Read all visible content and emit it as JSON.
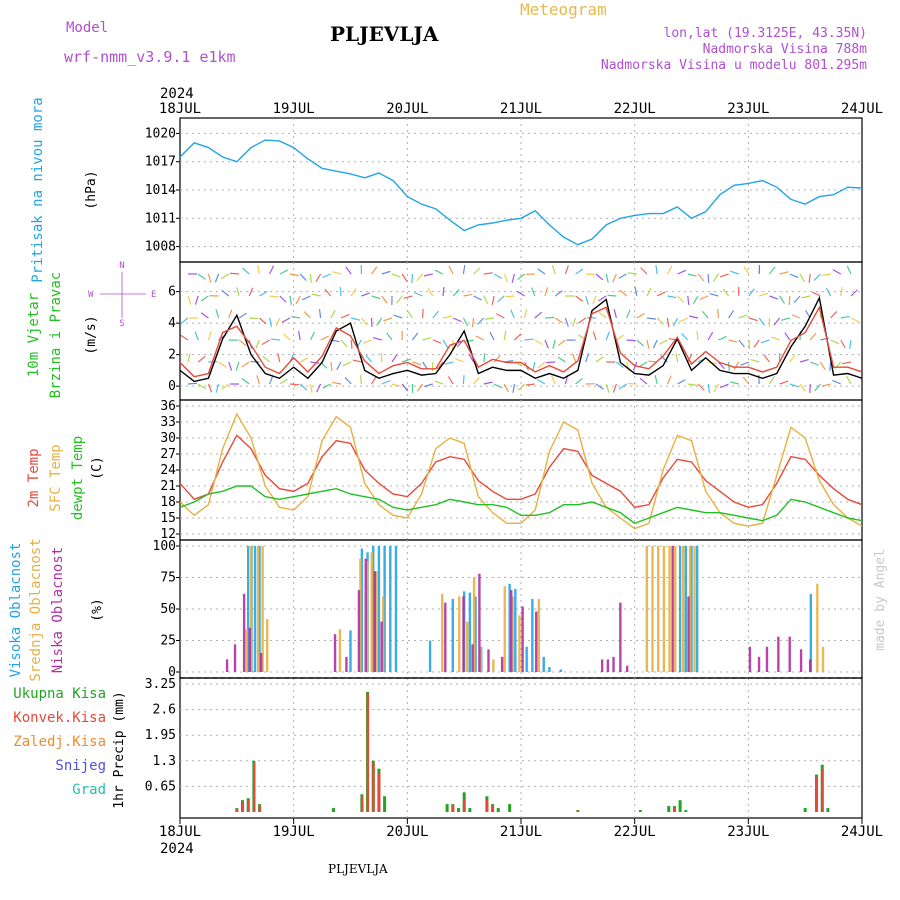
{
  "header": {
    "model_label": "Model",
    "model_name": "wrf-nmm_v3.9.1 e1km",
    "station": "PLJEVLJA",
    "title": "Meteogram",
    "location": "lon,lat (19.3125E, 43.35N)",
    "altitude": "Nadmorska Visina 788m",
    "model_altitude": "Nadmorska Visina u modelu 801.295m",
    "footer": "PLJEVLJA",
    "watermark": "made by Angel"
  },
  "time_axis": {
    "year": "2024",
    "labels": [
      "18JUL",
      "19JUL",
      "20JUL",
      "21JUL",
      "22JUL",
      "23JUL",
      "24JUL"
    ]
  },
  "chart_data": [
    {
      "type": "line",
      "title": "",
      "ylabel": "Pritisak na nivou mora",
      "unit": "(hPa)",
      "ylim": [
        1007,
        1021
      ],
      "yticks": [
        1008,
        1011,
        1014,
        1017,
        1020
      ],
      "color": "#22a4e6",
      "x": [
        0,
        0.125,
        0.25,
        0.375,
        0.5,
        0.625,
        0.75,
        0.875,
        1,
        1.125,
        1.25,
        1.375,
        1.5,
        1.625,
        1.75,
        1.875,
        2,
        2.125,
        2.25,
        2.375,
        2.5,
        2.625,
        2.75,
        2.875,
        3,
        3.125,
        3.25,
        3.375,
        3.5,
        3.625,
        3.75,
        3.875,
        4,
        4.125,
        4.25,
        4.375,
        4.5,
        4.625,
        4.75,
        4.875,
        5,
        5.125,
        5.25,
        5.375,
        5.5,
        5.625,
        5.75,
        5.875,
        6
      ],
      "values": [
        1017.5,
        1019.0,
        1018.5,
        1017.5,
        1017.0,
        1018.5,
        1019.3,
        1019.2,
        1018.5,
        1017.3,
        1016.3,
        1016.0,
        1015.7,
        1015.3,
        1015.8,
        1015.0,
        1013.3,
        1012.5,
        1012.0,
        1010.8,
        1009.7,
        1010.3,
        1010.5,
        1010.8,
        1011.0,
        1011.8,
        1010.3,
        1009.0,
        1008.2,
        1008.8,
        1010.3,
        1011.0,
        1011.3,
        1011.5,
        1011.5,
        1012.2,
        1011.0,
        1011.7,
        1013.5,
        1014.5,
        1014.7,
        1015.0,
        1014.3,
        1013.0,
        1012.5,
        1013.3,
        1013.5,
        1014.3,
        1014.2
      ],
      "line_style": "solid"
    },
    {
      "type": "line",
      "title": "",
      "ylabel": "10m Vjetar Brzina i Pravac",
      "unit": "(m/s)",
      "ylim": [
        -0.5,
        7.5
      ],
      "yticks": [
        0,
        2,
        4,
        6
      ],
      "direction_legend": [
        "N",
        "W",
        "E",
        "S"
      ],
      "series": [
        {
          "color": "#000000",
          "x": [
            0,
            0.125,
            0.25,
            0.375,
            0.5,
            0.625,
            0.75,
            0.875,
            1,
            1.125,
            1.25,
            1.375,
            1.5,
            1.625,
            1.75,
            1.875,
            2,
            2.125,
            2.25,
            2.375,
            2.5,
            2.625,
            2.75,
            2.875,
            3,
            3.125,
            3.25,
            3.375,
            3.5,
            3.625,
            3.75,
            3.875,
            4,
            4.125,
            4.25,
            4.375,
            4.5,
            4.625,
            4.75,
            4.875,
            5,
            5.125,
            5.25,
            5.375,
            5.5,
            5.625,
            5.75,
            5.875,
            6
          ],
          "values": [
            1.0,
            0.3,
            0.5,
            3.0,
            4.5,
            2.0,
            0.8,
            0.5,
            1.2,
            0.5,
            1.5,
            3.5,
            4.0,
            1.0,
            0.5,
            0.8,
            1.0,
            0.7,
            0.8,
            2.0,
            3.5,
            0.8,
            1.2,
            1.0,
            1.0,
            0.5,
            0.8,
            0.5,
            1.0,
            4.8,
            5.5,
            1.5,
            0.8,
            0.7,
            1.3,
            3.0,
            1.0,
            1.8,
            1.0,
            0.8,
            0.8,
            0.5,
            0.8,
            2.5,
            3.8,
            5.6,
            0.7,
            0.8,
            0.5
          ]
        },
        {
          "color": "#e84a3a",
          "x": [
            0,
            0.125,
            0.25,
            0.375,
            0.5,
            0.625,
            0.75,
            0.875,
            1,
            1.125,
            1.25,
            1.375,
            1.5,
            1.625,
            1.75,
            1.875,
            2,
            2.125,
            2.25,
            2.375,
            2.5,
            2.625,
            2.75,
            2.875,
            3,
            3.125,
            3.25,
            3.375,
            3.5,
            3.625,
            3.75,
            3.875,
            4,
            4.125,
            4.25,
            4.375,
            4.5,
            4.625,
            4.75,
            4.875,
            5,
            5.125,
            5.25,
            5.375,
            5.5,
            5.625,
            5.75,
            5.875,
            6
          ],
          "values": [
            1.5,
            0.6,
            0.8,
            3.4,
            3.8,
            2.6,
            1.2,
            0.8,
            1.8,
            0.9,
            1.9,
            3.7,
            3.2,
            1.6,
            0.8,
            1.3,
            1.5,
            1.1,
            1.1,
            2.6,
            2.9,
            1.2,
            1.7,
            1.5,
            1.5,
            0.9,
            1.3,
            0.9,
            1.6,
            4.6,
            5.0,
            2.1,
            1.3,
            1.1,
            1.9,
            3.1,
            1.4,
            2.2,
            1.5,
            1.2,
            1.2,
            0.9,
            1.2,
            2.9,
            3.4,
            5.0,
            1.2,
            1.2,
            0.9
          ]
        }
      ]
    },
    {
      "type": "line",
      "title": "",
      "ylabel": "2m Temp / SFC Temp / dewpt Temp",
      "unit": "(C)",
      "ylim": [
        12,
        36
      ],
      "yticks": [
        12,
        15,
        18,
        21,
        24,
        27,
        30,
        33,
        36
      ],
      "series": [
        {
          "name": "2m Temp",
          "color": "#e8483a",
          "x": [
            0,
            0.125,
            0.25,
            0.375,
            0.5,
            0.625,
            0.75,
            0.875,
            1,
            1.125,
            1.25,
            1.375,
            1.5,
            1.625,
            1.75,
            1.875,
            2,
            2.125,
            2.25,
            2.375,
            2.5,
            2.625,
            2.75,
            2.875,
            3,
            3.125,
            3.25,
            3.375,
            3.5,
            3.625,
            3.75,
            3.875,
            4,
            4.125,
            4.25,
            4.375,
            4.5,
            4.625,
            4.75,
            4.875,
            5,
            5.125,
            5.25,
            5.375,
            5.5,
            5.625,
            5.75,
            5.875,
            6
          ],
          "values": [
            21.5,
            18.5,
            19.5,
            25.5,
            30.5,
            28.0,
            23.0,
            20.5,
            20.0,
            21.5,
            26.5,
            29.5,
            29.0,
            24.0,
            21.5,
            19.5,
            19.0,
            21.5,
            25.5,
            26.5,
            26.0,
            22.0,
            20.0,
            18.5,
            18.5,
            19.5,
            24.5,
            28.0,
            27.5,
            23.0,
            21.5,
            20.0,
            17.0,
            17.5,
            22.5,
            26.0,
            25.5,
            22.0,
            20.0,
            18.0,
            17.0,
            17.5,
            21.5,
            26.5,
            26.0,
            23.0,
            20.5,
            18.5,
            17.5
          ]
        },
        {
          "name": "SFC Temp",
          "color": "#e8b040",
          "x": [
            0,
            0.125,
            0.25,
            0.375,
            0.5,
            0.625,
            0.75,
            0.875,
            1,
            1.125,
            1.25,
            1.375,
            1.5,
            1.625,
            1.75,
            1.875,
            2,
            2.125,
            2.25,
            2.375,
            2.5,
            2.625,
            2.75,
            2.875,
            3,
            3.125,
            3.25,
            3.375,
            3.5,
            3.625,
            3.75,
            3.875,
            4,
            4.125,
            4.25,
            4.375,
            4.5,
            4.625,
            4.75,
            4.875,
            5,
            5.125,
            5.25,
            5.375,
            5.5,
            5.625,
            5.75,
            5.875,
            6
          ],
          "values": [
            18.0,
            15.5,
            17.5,
            28.0,
            34.5,
            30.0,
            21.0,
            17.0,
            16.5,
            19.0,
            29.5,
            34.0,
            32.0,
            21.5,
            17.5,
            15.5,
            15.0,
            19.5,
            28.0,
            30.0,
            29.0,
            19.0,
            16.0,
            14.0,
            14.0,
            16.5,
            27.5,
            33.0,
            31.5,
            21.5,
            17.0,
            15.0,
            13.0,
            14.0,
            24.0,
            30.5,
            29.5,
            20.0,
            16.0,
            14.0,
            13.5,
            14.0,
            23.0,
            32.0,
            30.0,
            22.0,
            17.5,
            15.0,
            13.5
          ]
        },
        {
          "name": "dewpt Temp",
          "color": "#22c022",
          "x": [
            0,
            0.125,
            0.25,
            0.375,
            0.5,
            0.625,
            0.75,
            0.875,
            1,
            1.125,
            1.25,
            1.375,
            1.5,
            1.625,
            1.75,
            1.875,
            2,
            2.125,
            2.25,
            2.375,
            2.5,
            2.625,
            2.75,
            2.875,
            3,
            3.125,
            3.25,
            3.375,
            3.5,
            3.625,
            3.75,
            3.875,
            4,
            4.125,
            4.25,
            4.375,
            4.5,
            4.625,
            4.75,
            4.875,
            5,
            5.125,
            5.25,
            5.375,
            5.5,
            5.625,
            5.75,
            5.875,
            6
          ],
          "values": [
            17.0,
            18.0,
            19.5,
            20.0,
            21.0,
            21.0,
            19.0,
            18.5,
            19.0,
            19.5,
            20.0,
            20.5,
            19.5,
            19.0,
            18.5,
            17.0,
            16.5,
            17.0,
            17.5,
            18.5,
            18.0,
            17.5,
            17.5,
            17.0,
            15.5,
            15.5,
            16.0,
            17.5,
            17.5,
            18.0,
            17.0,
            16.0,
            14.0,
            15.0,
            16.0,
            17.0,
            16.5,
            16.0,
            16.0,
            15.5,
            15.0,
            14.5,
            15.5,
            18.5,
            18.0,
            17.0,
            16.0,
            15.0,
            14.5
          ]
        }
      ]
    },
    {
      "type": "bar",
      "title": "",
      "ylabel": "Visoka Oblacnost / Srednja Oblacnost / Niska Oblacnost",
      "unit": "(%)",
      "ylim": [
        0,
        100
      ],
      "yticks": [
        0,
        25,
        50,
        75,
        100
      ],
      "series": [
        {
          "name": "Visoka Oblacnost",
          "color": "#22a4e6",
          "x": [
            0.6,
            0.63,
            0.66,
            0.7,
            1.5,
            1.6,
            1.65,
            1.7,
            1.75,
            1.8,
            1.85,
            1.9,
            2.2,
            2.4,
            2.5,
            2.55,
            2.6,
            2.65,
            2.9,
            2.95,
            3.05,
            3.1,
            3.2,
            3.25,
            3.35,
            4.4,
            4.45,
            4.5,
            4.55,
            5.55
          ],
          "values": [
            100,
            100,
            100,
            100,
            33,
            98,
            95,
            100,
            100,
            100,
            100,
            100,
            25,
            58,
            64,
            63,
            60,
            20,
            70,
            66,
            20,
            58,
            12,
            4,
            2,
            100,
            100,
            100,
            100,
            62
          ]
        },
        {
          "name": "Srednja Oblacnost",
          "color": "#e8b040",
          "x": [
            0.58,
            0.62,
            0.68,
            0.72,
            0.76,
            1.4,
            1.58,
            1.64,
            1.68,
            1.72,
            1.78,
            2.3,
            2.45,
            2.52,
            2.58,
            2.64,
            2.75,
            2.85,
            2.92,
            2.98,
            3.15,
            4.1,
            4.15,
            4.2,
            4.25,
            4.3,
            4.35,
            4.42,
            4.48,
            4.52,
            5.6,
            5.65
          ],
          "values": [
            34,
            100,
            100,
            100,
            42,
            34,
            90,
            88,
            95,
            80,
            60,
            62,
            60,
            40,
            75,
            20,
            10,
            68,
            60,
            45,
            58,
            100,
            100,
            100,
            100,
            100,
            100,
            100,
            100,
            100,
            70,
            20
          ]
        },
        {
          "name": "Niska Oblacnost",
          "color": "#b030a0",
          "x": [
            0.4,
            0.47,
            0.55,
            0.6,
            0.7,
            1.35,
            1.45,
            1.56,
            1.62,
            1.7,
            1.76,
            2.32,
            2.48,
            2.56,
            2.62,
            2.7,
            2.82,
            2.9,
            3.0,
            3.12,
            3.7,
            3.75,
            3.8,
            3.86,
            3.92,
            4.32,
            4.46,
            5.0,
            5.08,
            5.15,
            5.25,
            5.35,
            5.45,
            5.53
          ],
          "values": [
            10,
            22,
            62,
            35,
            15,
            30,
            12,
            65,
            90,
            80,
            40,
            55,
            60,
            22,
            78,
            18,
            12,
            65,
            52,
            48,
            10,
            10,
            12,
            55,
            5,
            100,
            60,
            20,
            12,
            20,
            28,
            28,
            18,
            10
          ]
        }
      ]
    },
    {
      "type": "bar",
      "title": "",
      "ylabel": "1hr Precip",
      "unit": "(mm)",
      "ylim": [
        0,
        3.25
      ],
      "yticks": [
        0.65,
        1.3,
        1.95,
        2.6,
        3.25
      ],
      "legend": [
        "Ukupna Kisa",
        "Konvek.Kisa",
        "Zaledj.Kisa",
        "Snijeg",
        "Grad"
      ],
      "series": [
        {
          "name": "Ukupna Kisa",
          "color": "#22a422",
          "x": [
            0.5,
            0.55,
            0.6,
            0.65,
            0.7,
            1.35,
            1.6,
            1.65,
            1.7,
            1.75,
            1.8,
            2.35,
            2.4,
            2.45,
            2.5,
            2.55,
            2.7,
            2.75,
            2.8,
            2.9,
            3.5,
            4.05,
            4.3,
            4.35,
            4.4,
            4.45,
            5.5,
            5.6,
            5.65,
            5.7
          ],
          "values": [
            0.1,
            0.3,
            0.35,
            1.3,
            0.2,
            0.1,
            0.45,
            3.05,
            1.3,
            1.1,
            0.4,
            0.2,
            0.2,
            0.1,
            0.5,
            0.1,
            0.4,
            0.2,
            0.1,
            0.2,
            0.05,
            0.05,
            0.15,
            0.15,
            0.3,
            0.05,
            0.1,
            0.95,
            1.2,
            0.1
          ]
        },
        {
          "name": "Konvek.Kisa",
          "color": "#e8483a",
          "x": [
            0.5,
            0.55,
            0.6,
            0.65,
            0.7,
            1.6,
            1.65,
            1.7,
            1.75,
            2.4,
            2.5,
            2.7,
            2.75,
            3.5,
            4.35,
            5.6,
            5.65
          ],
          "values": [
            0.08,
            0.25,
            0.3,
            1.25,
            0.18,
            0.4,
            3.0,
            1.25,
            1.0,
            0.15,
            0.3,
            0.3,
            0.15,
            0.04,
            0.1,
            0.9,
            1.1
          ]
        },
        {
          "name": "Zaledj.Kisa",
          "color": "#f08a30",
          "x": [],
          "values": []
        },
        {
          "name": "Snijeg",
          "color": "#5050e0",
          "x": [],
          "values": []
        },
        {
          "name": "Grad",
          "color": "#20c0b0",
          "x": [],
          "values": []
        }
      ]
    }
  ]
}
